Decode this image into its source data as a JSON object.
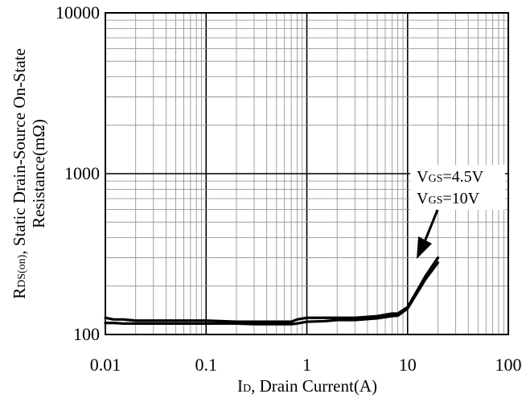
{
  "chart_data": {
    "type": "line",
    "title": "",
    "xlabel": "ID, Drain Current(A)",
    "ylabel_line1": "RDS(on), Static Drain-Source On-State",
    "ylabel_line2": "Resistance(mΩ)",
    "x_scale": "log",
    "y_scale": "log",
    "xlim": [
      0.01,
      100
    ],
    "ylim": [
      100,
      10000
    ],
    "x_tick_values": [
      0.01,
      0.1,
      1,
      10,
      100
    ],
    "x_tick_labels": [
      "0.01",
      "0.1",
      "1",
      "10",
      "100"
    ],
    "y_tick_values": [
      100,
      1000,
      10000
    ],
    "y_tick_labels": [
      "100",
      "1000",
      "10000"
    ],
    "grid": true,
    "series": [
      {
        "name": "VGS=4.5V",
        "x": [
          0.01,
          0.012,
          0.015,
          0.02,
          0.05,
          0.1,
          0.2,
          0.3,
          0.5,
          0.7,
          0.8,
          1,
          2,
          3,
          5,
          7,
          8,
          10,
          12,
          15,
          20
        ],
        "y": [
          127,
          124,
          124,
          122,
          122,
          122,
          120,
          120,
          120,
          120,
          124,
          127,
          127,
          127,
          130,
          135,
          135,
          148,
          180,
          230,
          300
        ]
      },
      {
        "name": "VGS=10V",
        "x": [
          0.01,
          0.012,
          0.015,
          0.02,
          0.05,
          0.1,
          0.2,
          0.3,
          0.5,
          0.7,
          0.8,
          1,
          1.5,
          2,
          3,
          5,
          7,
          8,
          10,
          12,
          15,
          20
        ],
        "y": [
          118,
          118,
          117,
          117,
          117,
          117,
          117,
          116,
          116,
          116,
          117,
          120,
          121,
          123,
          123,
          126,
          130,
          131,
          145,
          175,
          220,
          280
        ]
      }
    ],
    "annotations": {
      "vgs_45_prefix": "V",
      "vgs_45_sub": "GS",
      "vgs_45_suffix": "=4.5V",
      "vgs_10_prefix": "V",
      "vgs_10_sub": "GS",
      "vgs_10_suffix": "=10V"
    }
  }
}
